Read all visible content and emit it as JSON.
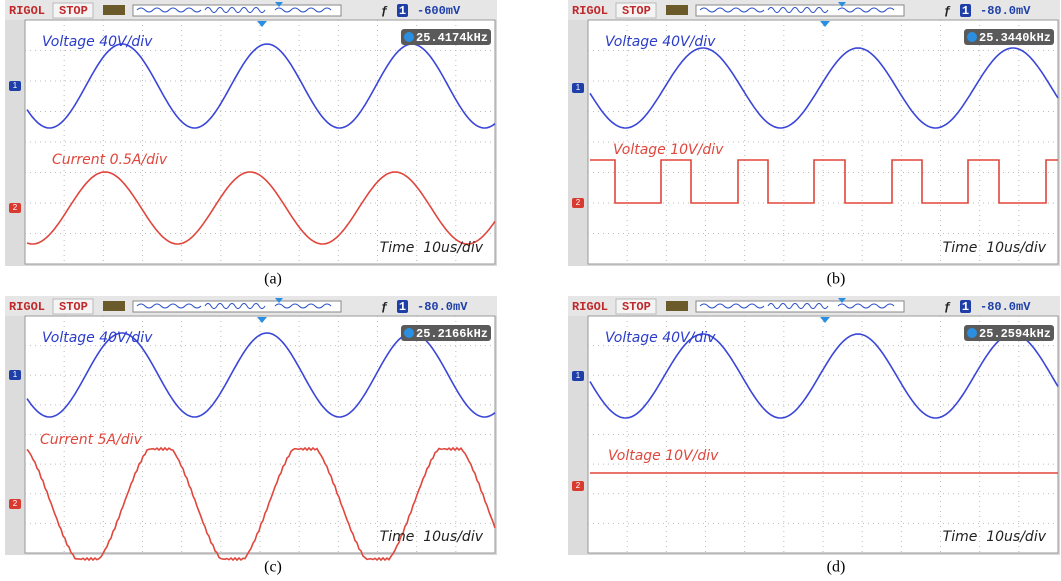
{
  "panels": [
    {
      "brand": "RIGOL",
      "status": "STOP",
      "trigger_channel": "1",
      "trigger_level": "-600mV",
      "frequency": "25.4174kHz",
      "channel1_marker": "1",
      "channel2_marker": "2",
      "channel1_label": "Voltage 40V/div",
      "channel2_label": "Current 0.5A/div",
      "timebase": "Time  10us/div",
      "caption": "(a)"
    },
    {
      "brand": "RIGOL",
      "status": "STOP",
      "trigger_channel": "1",
      "trigger_level": "-80.0mV",
      "frequency": "25.3440kHz",
      "channel1_marker": "1",
      "channel2_marker": "2",
      "channel1_label": "Voltage 40V/div",
      "channel2_label": "Voltage 10V/div",
      "timebase": "Time  10us/div",
      "caption": "(b)"
    },
    {
      "brand": "RIGOL",
      "status": "STOP",
      "trigger_channel": "1",
      "trigger_level": "-80.0mV",
      "frequency": "25.2166kHz",
      "channel1_marker": "1",
      "channel2_marker": "2",
      "channel1_label": "Voltage 40V/div",
      "channel2_label": "Current 5A/div",
      "timebase": "Time  10us/div",
      "caption": "(c)"
    },
    {
      "brand": "RIGOL",
      "status": "STOP",
      "trigger_channel": "1",
      "trigger_level": "-80.0mV",
      "frequency": "25.2594kHz",
      "channel1_marker": "1",
      "channel2_marker": "2",
      "channel1_label": "Voltage 40V/div",
      "channel2_label": "Voltage 10V/div",
      "timebase": "Time  10us/div",
      "caption": "(d)"
    }
  ]
}
